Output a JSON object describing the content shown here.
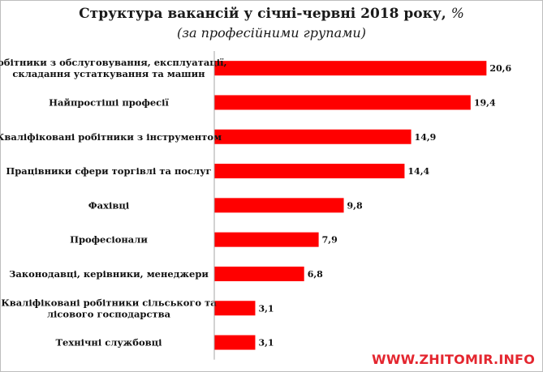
{
  "chart_data": {
    "type": "bar",
    "orientation": "horizontal",
    "title": "Структура вакансій у січні-червні 2018 року,",
    "unit": "%",
    "subtitle": "(за професійними групами)",
    "categories": [
      [
        "Робітники з обслуговування, експлуатації,",
        "складання устаткування та машин"
      ],
      [
        "Найпростіші професії"
      ],
      [
        "Кваліфіковані робітники з інструментом"
      ],
      [
        "Працівники сфери торгівлі та послуг"
      ],
      [
        "Фахівці"
      ],
      [
        "Професіонали"
      ],
      [
        "Законодавці, керівники, менеджери"
      ],
      [
        "Кваліфіковані робітники сільського та",
        "лісового господарства"
      ],
      [
        "Технічні службовці"
      ]
    ],
    "values": [
      20.6,
      19.4,
      14.9,
      14.4,
      9.8,
      7.9,
      6.8,
      3.1,
      3.1
    ],
    "value_labels": [
      "20,6",
      "19,4",
      "14,9",
      "14,4",
      "9,8",
      "7,9",
      "6,8",
      "3,1",
      "3,1"
    ],
    "xlim": [
      0,
      21.5
    ],
    "bar_color": "#ff0000",
    "axis_color": "#a6a6a6",
    "grid": false,
    "legend": "none"
  },
  "watermark": "WWW.ZHITOMIR.INFO"
}
